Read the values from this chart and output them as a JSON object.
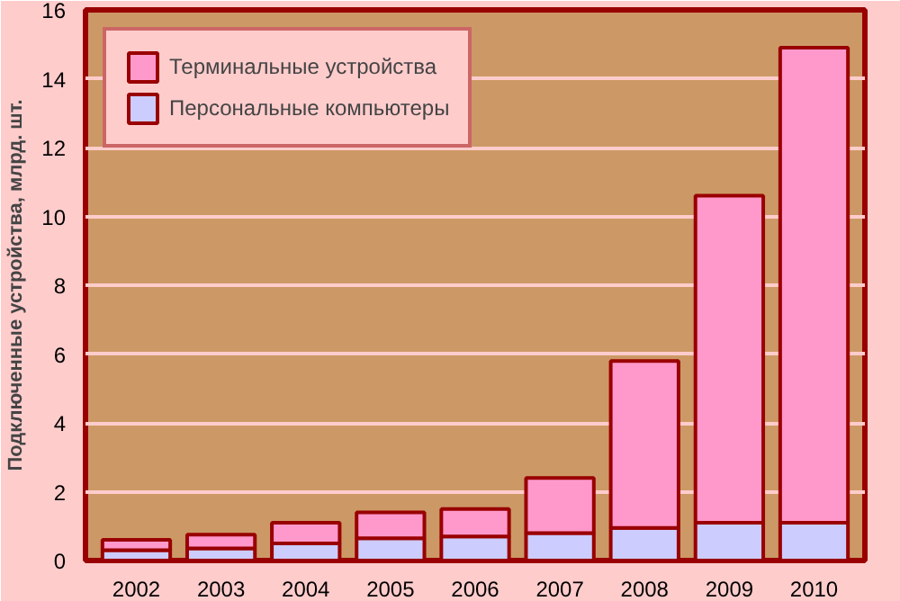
{
  "chart_data": {
    "type": "bar",
    "stacked": true,
    "ylabel": "Подключенные устройства, млрд. шт.",
    "categories": [
      "2002",
      "2003",
      "2004",
      "2005",
      "2006",
      "2007",
      "2008",
      "2009",
      "2010"
    ],
    "series": [
      {
        "name": "Персональные компьютеры",
        "color": "#ccccff",
        "values": [
          0.3,
          0.35,
          0.5,
          0.65,
          0.7,
          0.8,
          0.95,
          1.1,
          1.1
        ]
      },
      {
        "name": "Терминальные устройства",
        "color": "#ff99cc",
        "values": [
          0.3,
          0.4,
          0.6,
          0.75,
          0.8,
          1.6,
          4.85,
          9.5,
          13.8
        ]
      }
    ],
    "ylim": [
      0,
      16
    ],
    "yticks": [
      0,
      2,
      4,
      6,
      8,
      10,
      12,
      14,
      16
    ],
    "grid": "y",
    "legend": "top left"
  }
}
